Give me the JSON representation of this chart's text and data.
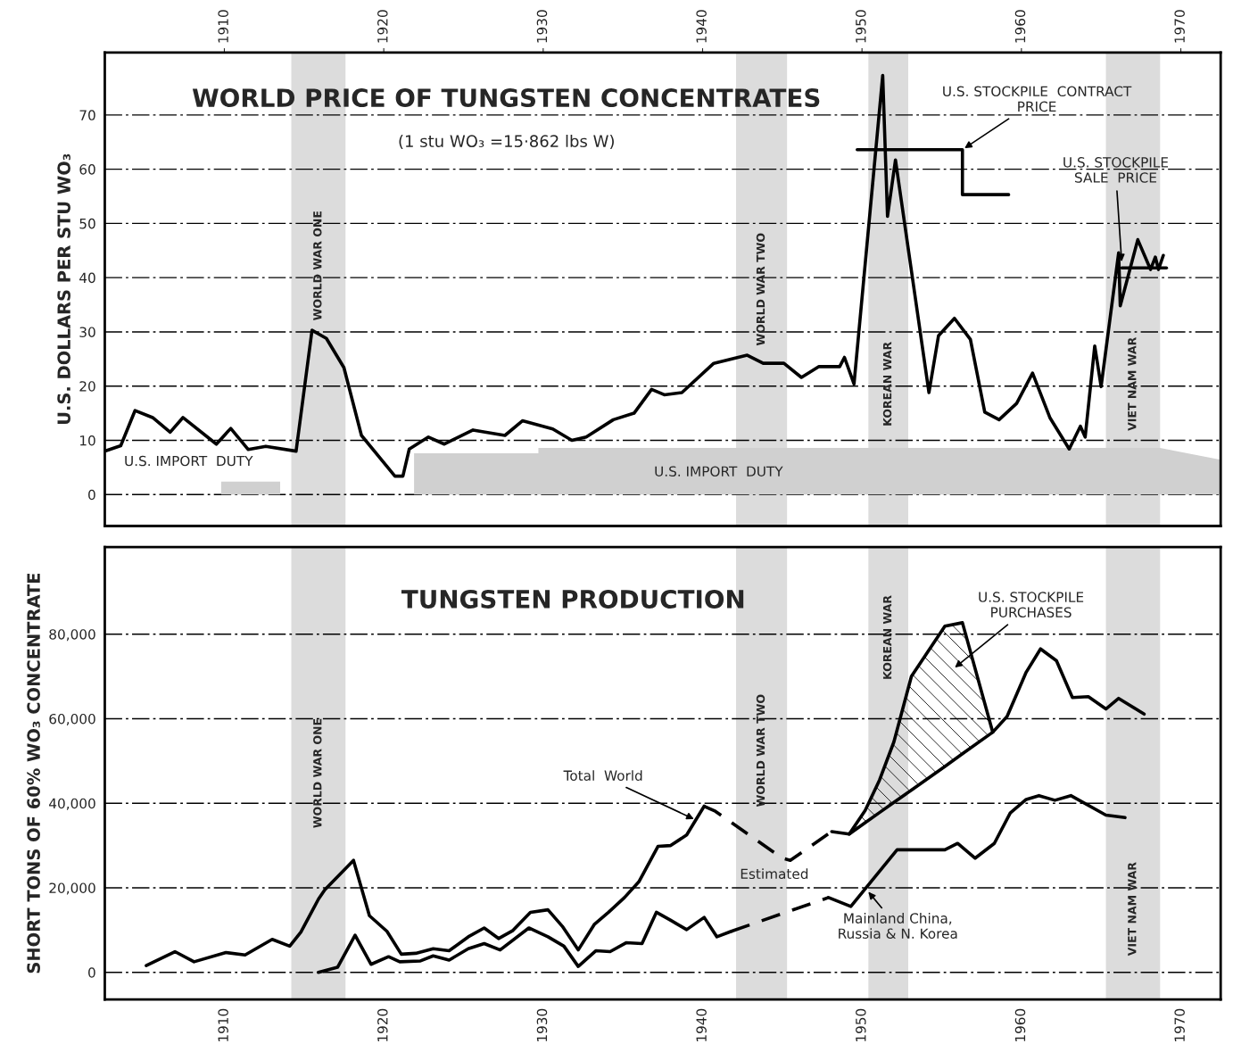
{
  "chart_data": [
    {
      "type": "line",
      "title": "WORLD PRICE OF TUNGSTEN CONCENTRATES",
      "subtitle": "(1 stu WO₃ =15·862 lbs W)",
      "ylabel": "U.S. DOLLARS PER STU WO₃",
      "xlim": [
        1902.5,
        1972.5
      ],
      "xticks": [
        1910,
        1920,
        1930,
        1940,
        1950,
        1960,
        1970
      ],
      "ylim": [
        -5.8,
        81.5
      ],
      "yticks": [
        0,
        10,
        20,
        30,
        40,
        50,
        60,
        70
      ],
      "grid": "y",
      "legend": false,
      "series": [
        {
          "type": "line",
          "color": "#000000",
          "x": [
            1902.6,
            1903.5,
            1904.4,
            1905.5,
            1906.6,
            1907.4,
            1909.5,
            1910.4,
            1911.5,
            1912.6,
            1914.5,
            1915.5,
            1916.4,
            1917.5,
            1918.6,
            1920.7,
            1921.2,
            1921.6,
            1922.8,
            1923.8,
            1925.6,
            1927.6,
            1928.7,
            1930.6,
            1931.8,
            1932.7,
            1934.4,
            1935.7,
            1936.8,
            1937.6,
            1938.7,
            1940.7,
            1942.8,
            1943.8,
            1945.1,
            1946.2,
            1947.3,
            1948.6,
            1948.9,
            1949.5,
            1951.3,
            1951.6,
            1952.1,
            1954.2,
            1954.8,
            1955.8,
            1956.8,
            1957.7,
            1958.6,
            1959.7,
            1960.7,
            1961.8,
            1963.0,
            1963.7,
            1964.0,
            1964.6,
            1965.0,
            1966.1,
            1966.2,
            1967.3,
            1968.1,
            1968.4,
            1968.6,
            1968.9
          ],
          "values": [
            8.1,
            9.0,
            15.5,
            14.2,
            11.5,
            14.2,
            9.3,
            12.2,
            8.3,
            8.9,
            8.0,
            30.3,
            28.8,
            23.4,
            10.9,
            3.4,
            3.4,
            8.4,
            10.6,
            9.3,
            11.9,
            10.9,
            13.6,
            12.1,
            10.0,
            10.6,
            13.8,
            15.0,
            19.4,
            18.4,
            18.8,
            24.2,
            25.7,
            24.2,
            24.2,
            21.6,
            23.6,
            23.6,
            25.3,
            20.4,
            77.3,
            51.3,
            61.7,
            18.8,
            29.3,
            32.5,
            28.6,
            15.2,
            13.8,
            16.8,
            22.4,
            14.1,
            8.4,
            12.6,
            10.6,
            27.4,
            19.9,
            44.6,
            34.8,
            47.0,
            41.5,
            43.8,
            41.5,
            44.1
          ]
        },
        {
          "type": "line",
          "color": "#000000",
          "x": [
            1949.7,
            1956.3,
            1956.3,
            1959.2
          ],
          "values": [
            63.6,
            63.6,
            55.3,
            55.3
          ]
        },
        {
          "type": "line",
          "color": "#000000",
          "x": [
            1966.3,
            1969.1
          ],
          "values": [
            41.8,
            41.8
          ]
        },
        {
          "type": "area",
          "color": "#d0d0d0",
          "x": [
            1909.8,
            1913.5
          ],
          "values": [
            2.4,
            2.4
          ]
        },
        {
          "type": "area",
          "color": "#d0d0d0",
          "x": [
            1921.9,
            1929.7,
            1929.7,
            1968.7,
            1972.5
          ],
          "values": [
            7.6,
            7.6,
            8.6,
            8.6,
            6.4
          ]
        }
      ],
      "bands": [
        {
          "axis": "x",
          "from": 1914.2,
          "to": 1917.6,
          "label": "WORLD WAR ONE",
          "color": "#dcdcdc"
        },
        {
          "axis": "x",
          "from": 1942.1,
          "to": 1945.3,
          "label": "WORLD WAR TWO",
          "color": "#dcdcdc"
        },
        {
          "axis": "x",
          "from": 1950.4,
          "to": 1952.9,
          "label": "KOREAN WAR",
          "color": "#dcdcdc"
        },
        {
          "axis": "x",
          "from": 1965.3,
          "to": 1968.7,
          "label": "VIET NAM WAR",
          "color": "#dcdcdc"
        }
      ],
      "annotations": [
        {
          "text": "U.S. STOCKPILE  CONTRACT\nPRICE",
          "x": 1956.3,
          "y": 63.6
        },
        {
          "text": "U.S. STOCKPILE\nSALE  PRICE",
          "x": 1966.3,
          "y": 42.5
        },
        "U.S. IMPORT  DUTY",
        "U.S. IMPORT  DUTY"
      ]
    },
    {
      "type": "line",
      "title": "TUNGSTEN PRODUCTION",
      "ylabel": "SHORT TONS OF 60% WO₃ CONCENTRATE",
      "xlim": [
        1902.5,
        1972.5
      ],
      "xticks": [
        1910,
        1920,
        1930,
        1940,
        1950,
        1960,
        1970
      ],
      "ylim": [
        -6400,
        100600
      ],
      "yticks": [
        0,
        {
          "value": 20000,
          "label": "20,000"
        },
        {
          "value": 40000,
          "label": "40,000"
        },
        {
          "value": 60000,
          "label": "60,000"
        },
        {
          "value": 80000,
          "label": "80,000"
        }
      ],
      "grid": "y",
      "legend": false,
      "series": [
        {
          "type": "line",
          "color": "#000000",
          "line_style": "solid",
          "x": [
            1905.1,
            1906.9,
            1908.1,
            1910.1,
            1911.3,
            1913.0,
            1914.1,
            1914.8,
            1915.9,
            1916.3,
            1918.1,
            1919.1,
            1920.2,
            1921.1,
            1922.0,
            1923.1,
            1924.1,
            1925.3,
            1926.3,
            1927.2,
            1928.1,
            1929.2,
            1930.3,
            1931.2,
            1932.2,
            1933.2,
            1934.1,
            1935.1,
            1936.0,
            1937.2,
            1938.0,
            1939.0,
            1940.1
          ],
          "values": [
            1600,
            4900,
            2500,
            4700,
            4100,
            7800,
            6200,
            9500,
            17300,
            19500,
            26500,
            13400,
            9700,
            4300,
            4500,
            5600,
            5100,
            8400,
            10500,
            8000,
            9900,
            14200,
            14800,
            10900,
            5300,
            11300,
            14200,
            17700,
            21400,
            29800,
            30000,
            32500,
            39300
          ]
        },
        {
          "type": "line",
          "color": "#000000",
          "line_style": "dashed",
          "x": [
            1940.1,
            1940.8,
            1945.0,
            1945.5,
            1948.1
          ],
          "values": [
            39300,
            38100,
            27000,
            26500,
            33300
          ]
        },
        {
          "type": "line",
          "color": "#000000",
          "line_style": "solid",
          "x": [
            1948.1,
            1949.2,
            1950.2,
            1951.1,
            1952.0,
            1953.1,
            1955.2,
            1956.3,
            1958.2,
            1959.1,
            1960.3,
            1961.2,
            1962.2,
            1963.2,
            1964.2,
            1965.3,
            1966.1,
            1967.7
          ],
          "values": [
            33300,
            32700,
            38300,
            45500,
            54500,
            70000,
            81900,
            82700,
            56800,
            60500,
            71000,
            76500,
            73700,
            65000,
            65200,
            62300,
            64800,
            61100
          ]
        },
        {
          "type": "line",
          "color": "#000000",
          "line_style": "solid",
          "x": [
            1915.9,
            1917.1,
            1918.2,
            1919.2,
            1920.3,
            1921.0,
            1922.3,
            1923.1,
            1924.1,
            1925.3,
            1926.3,
            1927.3,
            1929.1,
            1930.3,
            1931.3,
            1932.2,
            1933.3,
            1934.2,
            1935.2,
            1936.2,
            1937.1,
            1938.0,
            1939.0,
            1940.1,
            1940.9,
            1941.8
          ],
          "values": [
            0,
            1200,
            8800,
            1900,
            3700,
            2500,
            2700,
            3900,
            2900,
            5600,
            6800,
            5300,
            10500,
            8400,
            6200,
            1400,
            5100,
            4900,
            7000,
            6800,
            14200,
            12300,
            10100,
            13000,
            8400,
            9700
          ]
        },
        {
          "type": "line",
          "color": "#000000",
          "line_style": "dashed",
          "x": [
            1941.8,
            1947.9
          ],
          "values": [
            9700,
            17700
          ]
        },
        {
          "type": "line",
          "color": "#000000",
          "line_style": "solid",
          "x": [
            1947.9,
            1949.3,
            1952.2,
            1955.2,
            1956.0,
            1957.1,
            1958.3,
            1959.3,
            1960.3,
            1961.1,
            1962.1,
            1963.1,
            1965.3,
            1966.5
          ],
          "values": [
            17700,
            15600,
            29000,
            29000,
            30500,
            27000,
            30500,
            37700,
            40900,
            41800,
            40700,
            41800,
            37200,
            36600
          ]
        },
        {
          "type": "line",
          "color": "#000000",
          "line_style": "solid",
          "x": [
            1949.2,
            1950.2,
            1951.1,
            1952.0,
            1953.1,
            1955.2,
            1956.3,
            1958.2
          ],
          "values": [
            32700,
            35400,
            37800,
            40200,
            43100,
            48700,
            51700,
            56800
          ],
          "lower": [
            32700,
            35400,
            37800,
            40200,
            43100,
            48700,
            51700,
            56800
          ],
          "upper": [
            32700,
            38300,
            45500,
            54500,
            70000,
            81900,
            82700,
            56800
          ]
        }
      ],
      "bands": [
        {
          "axis": "x",
          "from": 1914.2,
          "to": 1917.6,
          "label": "WORLD WAR ONE",
          "color": "#dcdcdc"
        },
        {
          "axis": "x",
          "from": 1942.1,
          "to": 1945.3,
          "label": "WORLD WAR TWO",
          "color": "#dcdcdc"
        },
        {
          "axis": "x",
          "from": 1950.4,
          "to": 1952.9,
          "label": "KOREAN WAR",
          "color": "#dcdcdc"
        },
        {
          "axis": "x",
          "from": 1965.3,
          "to": 1968.7,
          "label": "VIET NAM WAR",
          "color": "#dcdcdc"
        }
      ],
      "annotations": [
        {
          "text": "Total  World",
          "x": 1939.6,
          "y": 36000
        },
        {
          "text": "Mainland China,\nRussia & N. Korea",
          "x": 1950.3,
          "y": 19500
        },
        "U.S. STOCKPILE\nPURCHASES",
        "Estimated"
      ]
    }
  ]
}
